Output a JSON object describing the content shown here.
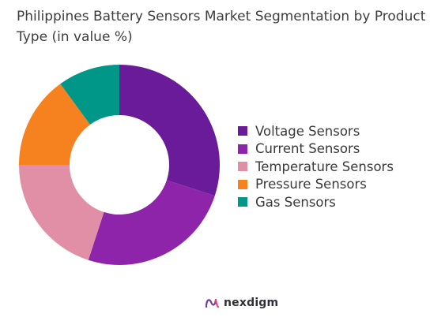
{
  "chart_data": {
    "type": "pie",
    "donut": true,
    "title": "Philippines Battery Sensors Market Segmentation by Product Type (in value %)",
    "series": [
      {
        "name": "Voltage Sensors",
        "value": 30,
        "color": "#6a1b9a"
      },
      {
        "name": "Current Sensors",
        "value": 25,
        "color": "#8e24aa"
      },
      {
        "name": "Temperature Sensors",
        "value": 20,
        "color": "#e08fa6"
      },
      {
        "name": "Pressure Sensors",
        "value": 15,
        "color": "#f5821f"
      },
      {
        "name": "Gas Sensors",
        "value": 10,
        "color": "#009688"
      }
    ],
    "legend_position": "right"
  },
  "brand": {
    "name": "nexdigm",
    "icon": "nexdigm-logo-icon"
  }
}
